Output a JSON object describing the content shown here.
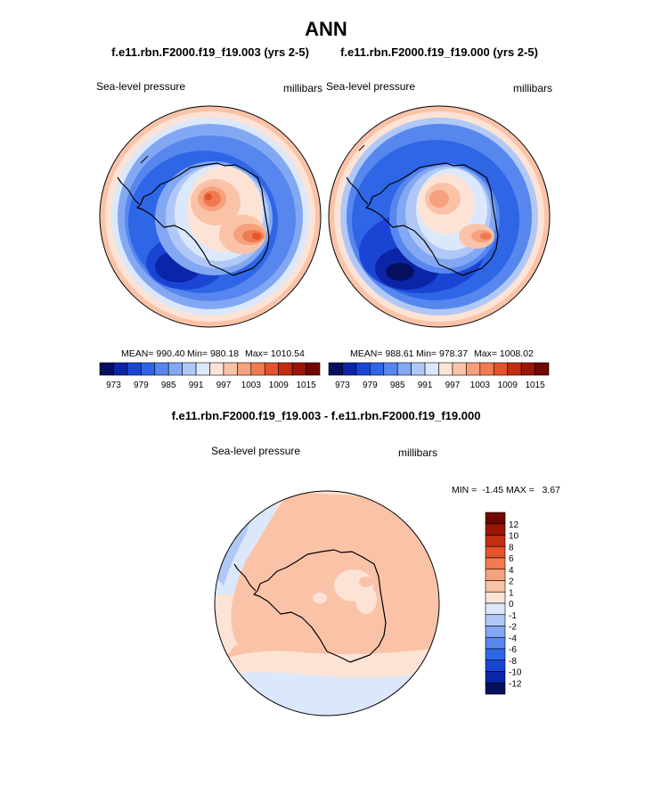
{
  "figure": {
    "title": "ANN",
    "diff_title": "f.e11.rbn.F2000.f19_f19.003 - f.e11.rbn.F2000.f19_f19.000"
  },
  "chart_data": [
    {
      "type": "heatmap",
      "projection": "south-polar-stereographic",
      "title": "f.e11.rbn.F2000.f19_f19.003 (yrs 2-5)",
      "left_label": "Sea-level pressure",
      "right_label": "millibars",
      "stats": {
        "mean_text": "MEAN= 990.40",
        "min_text": "Min= 980.18",
        "max_text": "Max= 1010.54",
        "mean": 990.4,
        "min": 980.18,
        "max": 1010.54
      },
      "levels": [
        973,
        976,
        979,
        982,
        985,
        988,
        991,
        994,
        997,
        1000,
        1003,
        1006,
        1009,
        1012,
        1015
      ],
      "tick_labels": [
        "973",
        "979",
        "985",
        "991",
        "997",
        "1003",
        "1009",
        "1015"
      ],
      "colors": [
        "#05105f",
        "#0b24a8",
        "#1a45d4",
        "#2f66e6",
        "#5787ee",
        "#83a8f3",
        "#b0c8f7",
        "#dbe8fb",
        "#fde3d5",
        "#fac3a8",
        "#f6a17d",
        "#f07b51",
        "#e4532b",
        "#c22d12",
        "#9a1605",
        "#6e0800"
      ]
    },
    {
      "type": "heatmap",
      "projection": "south-polar-stereographic",
      "title": "f.e11.rbn.F2000.f19_f19.000 (yrs 2-5)",
      "left_label": "Sea-level pressure",
      "right_label": "millibars",
      "stats": {
        "mean_text": "MEAN= 988.61",
        "min_text": "Min= 978.37",
        "max_text": "Max= 1008.02",
        "mean": 988.61,
        "min": 978.37,
        "max": 1008.02
      },
      "levels": [
        973,
        976,
        979,
        982,
        985,
        988,
        991,
        994,
        997,
        1000,
        1003,
        1006,
        1009,
        1012,
        1015
      ],
      "tick_labels": [
        "973",
        "979",
        "985",
        "991",
        "997",
        "1003",
        "1009",
        "1015"
      ],
      "colors": [
        "#05105f",
        "#0b24a8",
        "#1a45d4",
        "#2f66e6",
        "#5787ee",
        "#83a8f3",
        "#b0c8f7",
        "#dbe8fb",
        "#fde3d5",
        "#fac3a8",
        "#f6a17d",
        "#f07b51",
        "#e4532b",
        "#c22d12",
        "#9a1605",
        "#6e0800"
      ]
    },
    {
      "type": "heatmap",
      "projection": "south-polar-stereographic",
      "title": "f.e11.rbn.F2000.f19_f19.003 - f.e11.rbn.F2000.f19_f19.000",
      "left_label": "Sea-level pressure",
      "right_label": "millibars",
      "stats": {
        "minmax_text": "MIN =  -1.45 MAX =   3.67",
        "min": -1.45,
        "max": 3.67
      },
      "levels": [
        -12,
        -10,
        -8,
        -6,
        -4,
        -2,
        -1,
        0,
        1,
        2,
        4,
        6,
        8,
        10,
        12
      ],
      "tick_labels": [
        "12",
        "10",
        "8",
        "6",
        "4",
        "2",
        "1",
        "0",
        "-1",
        "-2",
        "-4",
        "-6",
        "-8",
        "-10",
        "-12"
      ],
      "colors": [
        "#05105f",
        "#0b24a8",
        "#1a45d4",
        "#2f66e6",
        "#5787ee",
        "#83a8f3",
        "#b0c8f7",
        "#dbe8fb",
        "#fde3d5",
        "#fac3a8",
        "#f6a17d",
        "#f07b51",
        "#e4532b",
        "#c22d12",
        "#9a1605",
        "#6e0800"
      ]
    }
  ]
}
